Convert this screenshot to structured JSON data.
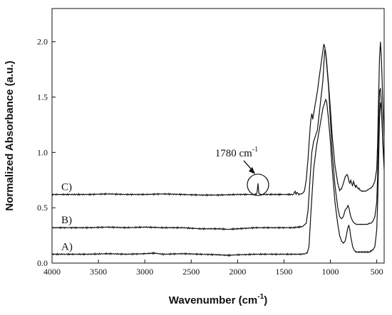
{
  "chart_data": {
    "type": "line",
    "title": "",
    "xlabel": "Wavenumber (cm",
    "xlabel_sup": "-1",
    "xlabel_tail": ")",
    "ylabel": "Normalized Absorbance (a.u.)",
    "xlim": [
      4000,
      420
    ],
    "ylim": [
      0.0,
      2.3
    ],
    "x_reversed": true,
    "grid": false,
    "x_ticks": [
      4000,
      3500,
      3000,
      2500,
      2000,
      1500,
      1000,
      500
    ],
    "x_tick_labels": [
      "4000",
      "3500",
      "3000",
      "2500",
      "2000",
      "1500",
      "1000",
      "500"
    ],
    "y_ticks": [
      0.0,
      0.5,
      1.0,
      1.5,
      2.0
    ],
    "y_tick_labels": [
      "0.0",
      "0.5",
      "1.0",
      "1.5",
      "2.0"
    ],
    "line_color": "#111111",
    "series": [
      {
        "name": "A)",
        "x": [
          4000,
          3800,
          3600,
          3400,
          3200,
          3000,
          2900,
          2800,
          2600,
          2400,
          2200,
          2100,
          2000,
          1800,
          1600,
          1400,
          1300,
          1250,
          1230,
          1210,
          1180,
          1150,
          1120,
          1100,
          1080,
          1060,
          1050,
          1040,
          1020,
          1000,
          980,
          950,
          920,
          900,
          880,
          860,
          840,
          820,
          810,
          800,
          790,
          780,
          760,
          740,
          720,
          700,
          680,
          660,
          640,
          620,
          600,
          580,
          560,
          540,
          520,
          500,
          490,
          480,
          470,
          460,
          450,
          440,
          430,
          420
        ],
        "y": [
          0.08,
          0.08,
          0.08,
          0.085,
          0.08,
          0.085,
          0.09,
          0.08,
          0.085,
          0.08,
          0.075,
          0.07,
          0.075,
          0.08,
          0.08,
          0.08,
          0.08,
          0.09,
          0.15,
          0.45,
          0.85,
          1.05,
          1.2,
          1.3,
          1.4,
          1.45,
          1.48,
          1.46,
          1.3,
          1.1,
          0.85,
          0.55,
          0.35,
          0.25,
          0.2,
          0.18,
          0.2,
          0.28,
          0.33,
          0.34,
          0.3,
          0.24,
          0.15,
          0.11,
          0.1,
          0.1,
          0.1,
          0.1,
          0.1,
          0.1,
          0.1,
          0.1,
          0.11,
          0.12,
          0.15,
          0.3,
          0.55,
          0.9,
          1.3,
          1.45,
          1.4,
          1.2,
          1.0,
          0.85
        ]
      },
      {
        "name": "B)",
        "x": [
          4000,
          3800,
          3600,
          3400,
          3200,
          3000,
          2800,
          2600,
          2400,
          2200,
          2100,
          2000,
          1800,
          1600,
          1400,
          1300,
          1260,
          1240,
          1220,
          1200,
          1180,
          1160,
          1140,
          1120,
          1100,
          1080,
          1070,
          1060,
          1050,
          1040,
          1020,
          1000,
          980,
          950,
          920,
          900,
          880,
          860,
          840,
          820,
          810,
          800,
          790,
          780,
          760,
          740,
          720,
          700,
          680,
          660,
          640,
          620,
          600,
          580,
          560,
          540,
          520,
          500,
          490,
          480,
          470,
          460,
          450,
          440,
          430,
          420
        ],
        "y": [
          0.32,
          0.32,
          0.32,
          0.325,
          0.32,
          0.325,
          0.32,
          0.32,
          0.31,
          0.31,
          0.305,
          0.31,
          0.32,
          0.32,
          0.32,
          0.33,
          0.36,
          0.48,
          0.75,
          1.0,
          1.1,
          1.15,
          1.2,
          1.35,
          1.5,
          1.65,
          1.8,
          1.92,
          1.9,
          1.8,
          1.6,
          1.3,
          1.0,
          0.7,
          0.5,
          0.42,
          0.4,
          0.42,
          0.48,
          0.5,
          0.52,
          0.5,
          0.46,
          0.42,
          0.38,
          0.36,
          0.35,
          0.35,
          0.35,
          0.35,
          0.35,
          0.35,
          0.35,
          0.36,
          0.36,
          0.38,
          0.42,
          0.55,
          0.8,
          1.2,
          1.55,
          1.58,
          1.45,
          1.25,
          1.05,
          0.9
        ]
      },
      {
        "name": "C)",
        "x": [
          4000,
          3800,
          3600,
          3400,
          3200,
          3000,
          2800,
          2600,
          2400,
          2200,
          2000,
          1850,
          1800,
          1790,
          1785,
          1780,
          1775,
          1770,
          1760,
          1720,
          1600,
          1500,
          1400,
          1380,
          1370,
          1360,
          1340,
          1300,
          1280,
          1260,
          1240,
          1220,
          1210,
          1200,
          1190,
          1180,
          1160,
          1140,
          1120,
          1100,
          1080,
          1070,
          1060,
          1050,
          1040,
          1020,
          1000,
          980,
          950,
          920,
          900,
          880,
          860,
          840,
          820,
          810,
          800,
          790,
          780,
          770,
          760,
          750,
          740,
          730,
          720,
          710,
          700,
          690,
          680,
          660,
          640,
          620,
          600,
          580,
          560,
          540,
          520,
          500,
          490,
          480,
          470,
          460,
          450,
          440,
          430,
          420
        ],
        "y": [
          0.62,
          0.62,
          0.62,
          0.625,
          0.62,
          0.62,
          0.625,
          0.62,
          0.615,
          0.615,
          0.62,
          0.62,
          0.62,
          0.64,
          0.68,
          0.72,
          0.67,
          0.63,
          0.62,
          0.62,
          0.62,
          0.62,
          0.62,
          0.65,
          0.62,
          0.64,
          0.62,
          0.63,
          0.65,
          0.75,
          0.95,
          1.2,
          1.3,
          1.35,
          1.3,
          1.35,
          1.45,
          1.55,
          1.68,
          1.8,
          1.92,
          1.98,
          1.95,
          1.9,
          1.82,
          1.62,
          1.4,
          1.15,
          0.88,
          0.72,
          0.66,
          0.67,
          0.72,
          0.78,
          0.8,
          0.78,
          0.74,
          0.72,
          0.75,
          0.72,
          0.7,
          0.74,
          0.71,
          0.69,
          0.7,
          0.68,
          0.67,
          0.67,
          0.66,
          0.65,
          0.65,
          0.65,
          0.66,
          0.67,
          0.68,
          0.7,
          0.74,
          0.85,
          1.1,
          1.5,
          1.85,
          2.0,
          1.85,
          1.6,
          1.35,
          1.15
        ]
      }
    ],
    "annotation": {
      "text": "1780 cm",
      "sup": "-1",
      "x": 1780,
      "y": 0.72
    }
  }
}
